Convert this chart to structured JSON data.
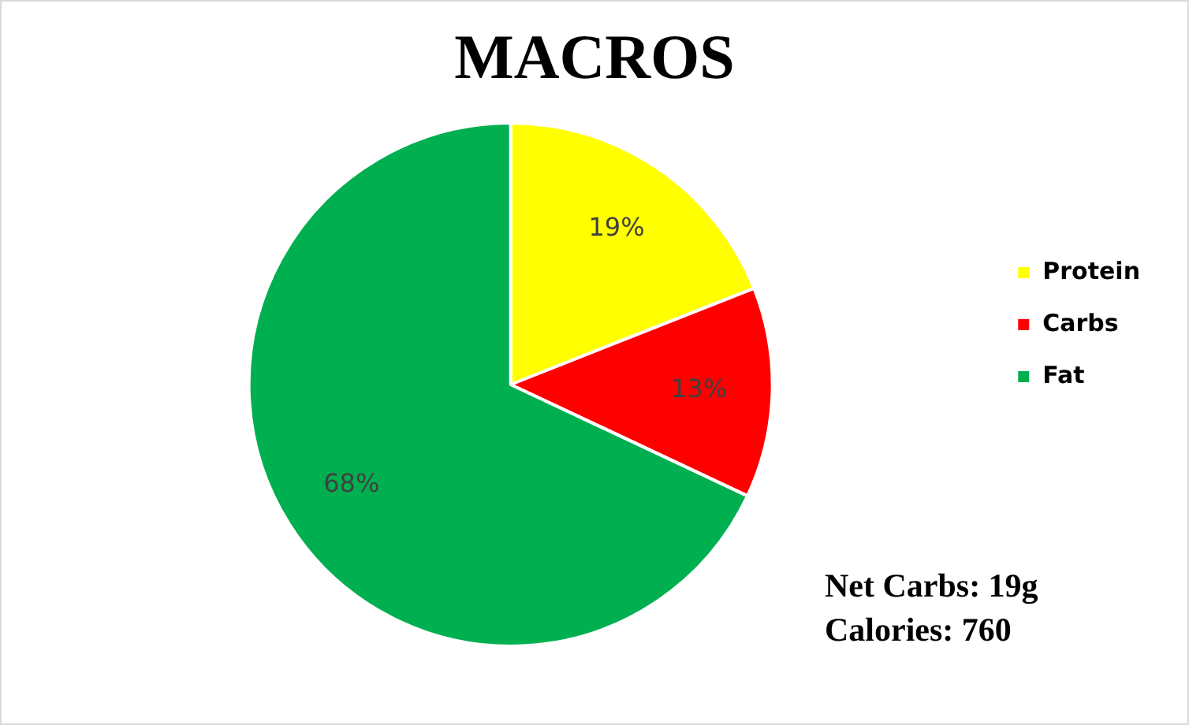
{
  "chart_data": {
    "type": "pie",
    "title": "MACROS",
    "categories": [
      "Protein",
      "Carbs",
      "Fat"
    ],
    "values": [
      19,
      13,
      68
    ],
    "colors": [
      "#ffff00",
      "#ff0000",
      "#00b050"
    ],
    "value_labels": [
      "19%",
      "13%",
      "68%"
    ],
    "legend": "right",
    "annotations": [
      "Net Carbs: 19g",
      "Calories: 760"
    ]
  }
}
